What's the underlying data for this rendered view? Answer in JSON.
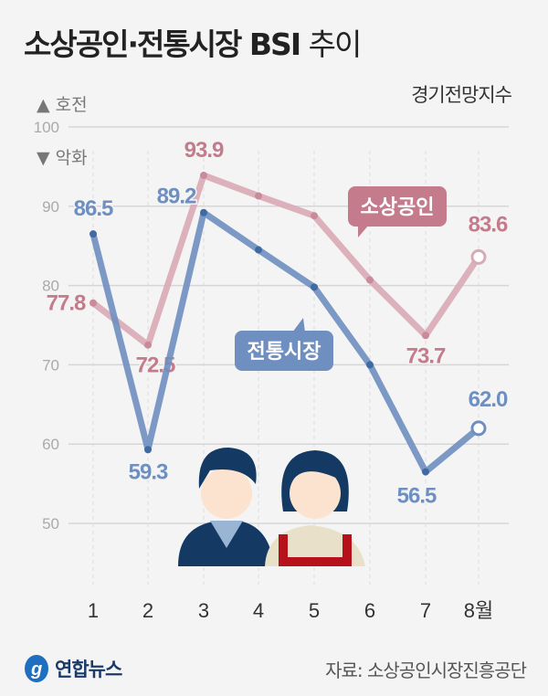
{
  "title": "소상공인·전통시장 BSI",
  "title_suffix": "추이",
  "unit_label": "경기전망지수",
  "legend_up": "▲ 호전",
  "legend_down": "▼ 악화",
  "source": "자료: 소상공인시장진흥공단",
  "logo_text": "연합뉴스",
  "chart_data": {
    "type": "line",
    "categories": [
      "1",
      "2",
      "3",
      "4",
      "5",
      "6",
      "7",
      "8월"
    ],
    "ylim": [
      50,
      100
    ],
    "yticks": [
      100,
      90,
      80,
      70,
      60,
      50
    ],
    "grid": true,
    "series": [
      {
        "name": "소상공인",
        "color": "#d9aab5",
        "label_color": "#c47b8c",
        "values": [
          77.8,
          72.5,
          93.9,
          91.3,
          88.8,
          80.7,
          73.7,
          83.6
        ],
        "labels": [
          "77.8",
          "72.5",
          "93.9",
          null,
          null,
          null,
          "73.7",
          "83.6"
        ]
      },
      {
        "name": "전통시장",
        "color": "#6e8fbf",
        "label_color": "#6e8fbf",
        "values": [
          86.5,
          59.3,
          89.2,
          84.5,
          79.8,
          70.0,
          56.5,
          62.0
        ],
        "labels": [
          "86.5",
          "59.3",
          "89.2",
          null,
          null,
          null,
          "56.5",
          "62.0"
        ]
      }
    ]
  }
}
